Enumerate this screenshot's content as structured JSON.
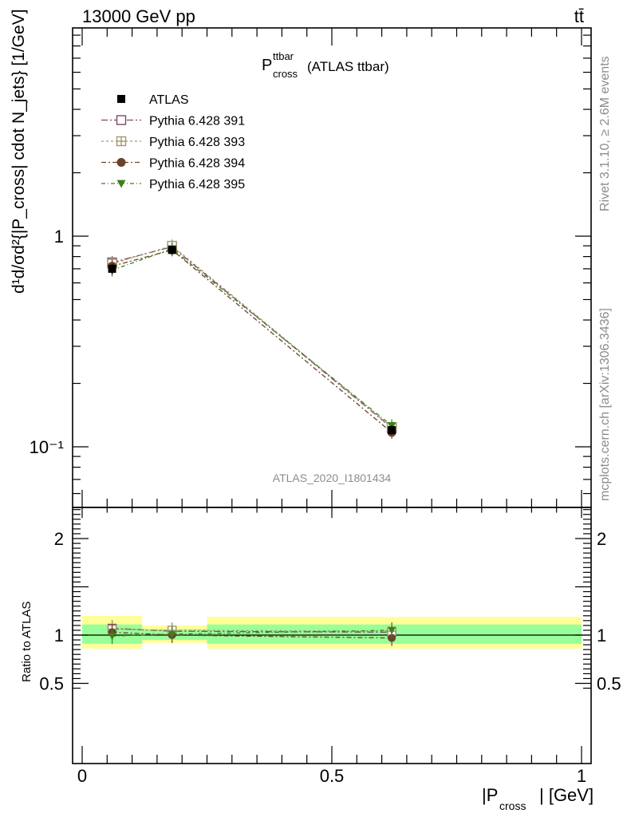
{
  "header": {
    "energy_label": "13000 GeV pp",
    "process_label": "tt̄"
  },
  "side_labels": {
    "rivet": "Rivet 3.1.10, ≥ 2.6M events",
    "mcplots": "mcplots.cern.ch [arXiv:1306.3436]"
  },
  "plot": {
    "title_main": "P",
    "title_sup": "ttbar",
    "title_sub": "cross",
    "title_suffix": "(ATLAS ttbar)",
    "analysis_id": "ATLAS_2020_I1801434",
    "ylabel_main": "d¹d/σd²{|P_cross| cdot N_jets} [1/GeV]",
    "ylabel_ratio": "Ratio to ATLAS",
    "xlabel_main": "|P",
    "xlabel_sub": "cross",
    "xlabel_unit": "| [GeV]"
  },
  "colors": {
    "band_inner": "#99ff99",
    "band_outer": "#ffff99",
    "data": "#000000",
    "s391": "#7b4a64",
    "s393": "#a09a6c",
    "s394": "#6b4328",
    "s395": "#3f7f1a"
  },
  "chart_data": {
    "type": "scatter",
    "x_edges": [
      0,
      0.12,
      0.25,
      1.0
    ],
    "x_centers": [
      0.06,
      0.18,
      0.62
    ],
    "xlim": [
      0,
      1
    ],
    "ylim_main": [
      0.06,
      9.0
    ],
    "yscale_main": "log",
    "ylim_ratio": [
      0.4,
      2.4
    ],
    "y_ticks_main": [
      "1",
      "10⁻¹"
    ],
    "y_ticks_ratio": [
      "0.5",
      "1",
      "2"
    ],
    "x_ticks": [
      "0",
      "0.5",
      "1"
    ],
    "data": {
      "name": "ATLAS",
      "values": [
        0.7,
        0.86,
        0.12
      ],
      "errors": [
        0.04,
        0.04,
        0.006
      ]
    },
    "ratio_band_inner": [
      [
        0.91,
        1.11
      ],
      [
        0.95,
        1.06
      ],
      [
        0.91,
        1.11
      ]
    ],
    "ratio_band_outer": [
      [
        0.86,
        1.2
      ],
      [
        0.92,
        1.1
      ],
      [
        0.86,
        1.19
      ]
    ],
    "series": [
      {
        "name": "Pythia 6.428 391",
        "values": [
          0.75,
          0.89,
          0.123
        ],
        "ratio": [
          1.07,
          1.04,
          1.03
        ],
        "marker": "square-open"
      },
      {
        "name": "Pythia 6.428 393",
        "values": [
          0.74,
          0.9,
          0.124
        ],
        "ratio": [
          1.06,
          1.05,
          1.04
        ],
        "marker": "plus-square"
      },
      {
        "name": "Pythia 6.428 394",
        "values": [
          0.72,
          0.86,
          0.117
        ],
        "ratio": [
          1.03,
          1.0,
          0.97
        ],
        "marker": "circle"
      },
      {
        "name": "Pythia 6.428 395",
        "values": [
          0.69,
          0.87,
          0.126
        ],
        "ratio": [
          0.99,
          1.01,
          1.05
        ],
        "marker": "triangle-down"
      }
    ],
    "legend_position": "top-left",
    "grid": false
  }
}
